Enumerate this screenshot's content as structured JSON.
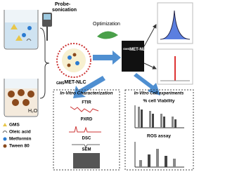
{
  "process": {
    "probe": "Probe-",
    "sonication": "sonication",
    "optimization": "Optimization",
    "water": "H₂O"
  },
  "nanoparticle": {
    "prefix": "GMS",
    "name": "MET-NLC"
  },
  "image_label": {
    "prefix": "GMS",
    "name": "MET-NLC"
  },
  "legend": {
    "items": [
      "GMS",
      "Oleic acid",
      "Metformin",
      "Tween 80"
    ]
  },
  "characterization": {
    "title": "In-Vitro Characterization",
    "items": [
      "FTIR",
      "PXRD",
      "DSC",
      "SEM"
    ]
  },
  "cell_experiments": {
    "title": "In-Vitro Cell experiments",
    "items": [
      "% cell Viability",
      "ROS assay"
    ]
  }
}
